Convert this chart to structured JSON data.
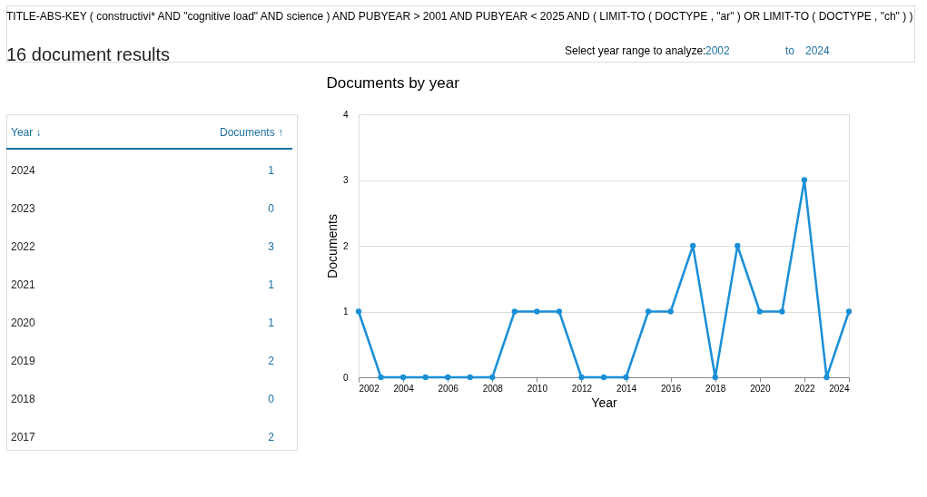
{
  "chart_data": {
    "type": "line",
    "title": "Documents by year",
    "xlabel": "Year",
    "ylabel": "Documents",
    "x": [
      2002,
      2003,
      2004,
      2005,
      2006,
      2007,
      2008,
      2009,
      2010,
      2011,
      2012,
      2013,
      2014,
      2015,
      2016,
      2017,
      2018,
      2019,
      2020,
      2021,
      2022,
      2023,
      2024
    ],
    "series": [
      {
        "color": "#1a8fd6",
        "values": [
          1,
          0,
          0,
          0,
          0,
          0,
          0,
          1,
          1,
          1,
          0,
          0,
          0,
          1,
          1,
          2,
          0,
          2,
          1,
          1,
          3,
          0,
          1
        ]
      }
    ],
    "xlim": [
      2002,
      2024
    ],
    "xticks": [
      2002,
      2004,
      2006,
      2008,
      2010,
      2012,
      2014,
      2016,
      2018,
      2020,
      2022,
      2024
    ],
    "ylim": [
      0,
      4
    ],
    "yticks": [
      0,
      1,
      2,
      3,
      4
    ],
    "grid": "y",
    "marker": "circle",
    "line_style": "solid",
    "annotations": [
      "TITLE-ABS-KEY ( constructivi* AND \"cognitive load\" AND science ) AND PUBYEAR > 2001 AND PUBYEAR < 2025 AND ( LIMIT-TO ( DOCTYPE , \"ar\" ) OR LIMIT-TO ( DOCTYPE , \"ch\" ) )",
      "16 document results",
      "Select year range to analyze:",
      "2002",
      "to",
      "2024",
      "Year ↓",
      "Documents ↑",
      "2024",
      "1",
      "2023",
      "0",
      "2022",
      "3",
      "2021",
      "1",
      "2020",
      "1",
      "2019",
      "2",
      "2018",
      "0",
      "2017",
      "2"
    ]
  }
}
